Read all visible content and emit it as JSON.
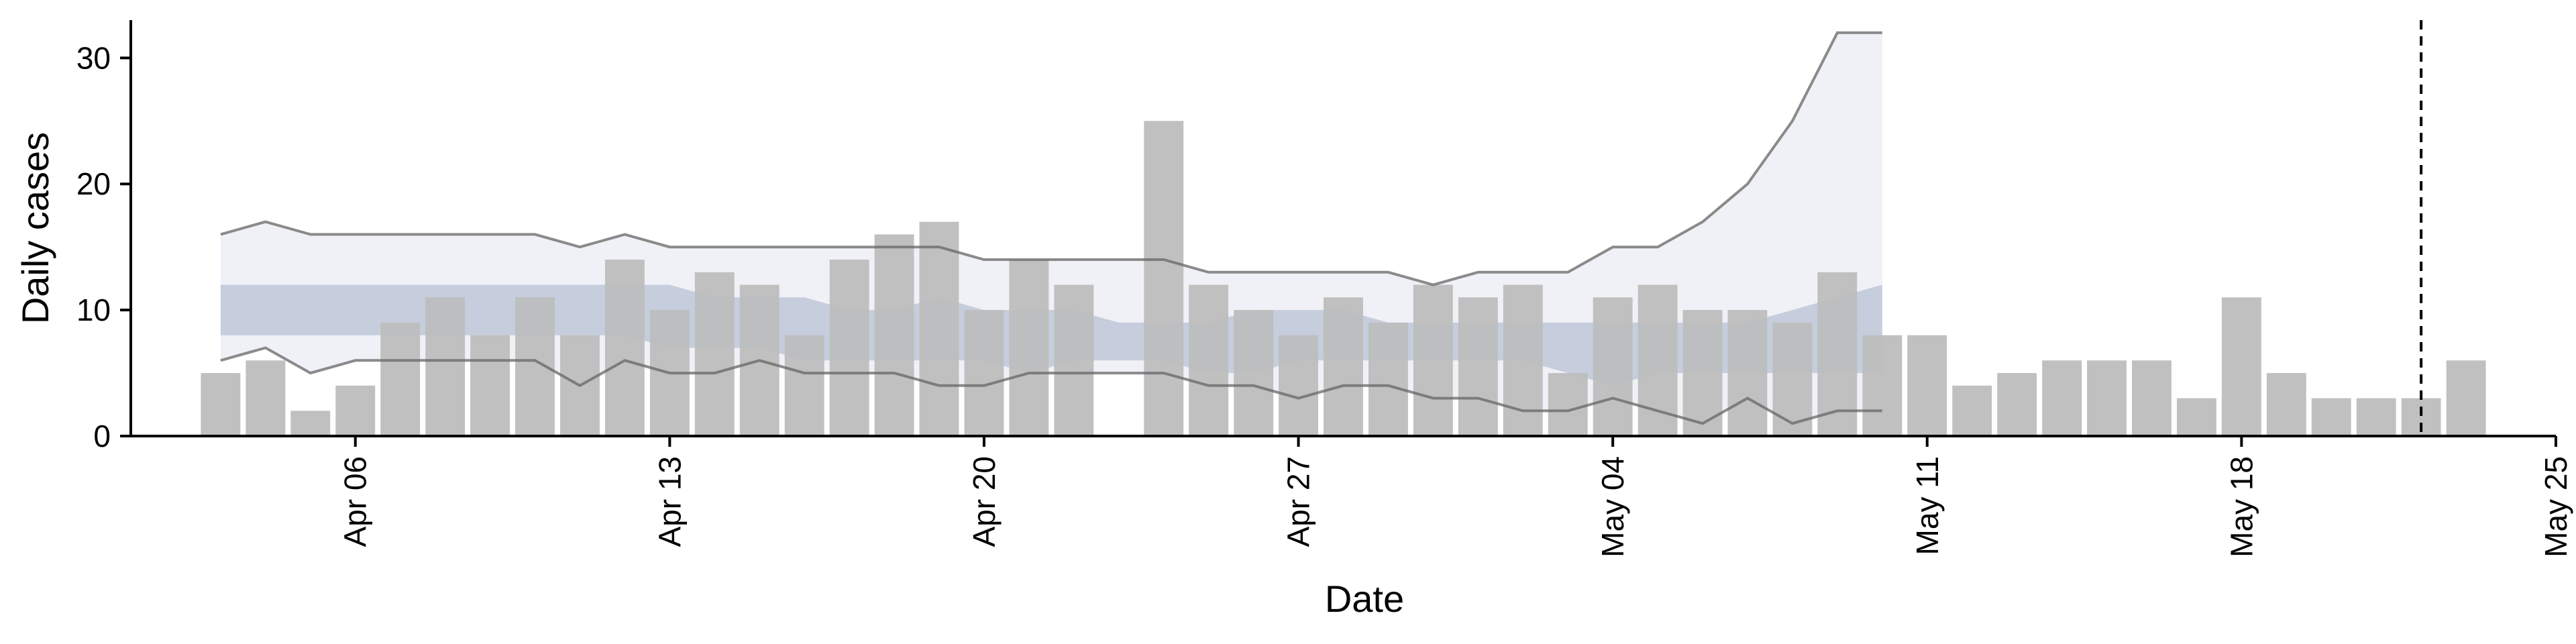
{
  "chart_data": {
    "type": "bar",
    "xlabel": "Date",
    "ylabel": "Daily cases",
    "title": "",
    "xlim": [
      "2020-04-01",
      "2020-05-25"
    ],
    "ylim": [
      0,
      33
    ],
    "x_ticks": [
      "Apr 06",
      "Apr 13",
      "Apr 20",
      "Apr 27",
      "May 04",
      "May 11",
      "May 18",
      "May 25"
    ],
    "x_tick_dates": [
      "2020-04-06",
      "2020-04-13",
      "2020-04-20",
      "2020-04-27",
      "2020-05-04",
      "2020-05-11",
      "2020-05-18",
      "2020-05-25"
    ],
    "y_ticks": [
      0,
      10,
      20,
      30
    ],
    "grid": false,
    "bar_color": "#bdbdbd",
    "band_outer_color": "#e6e8f0",
    "band_inner_color": "#aab5cc",
    "bound_line_color": "#666666",
    "reference_line": {
      "date": "2020-05-22",
      "style": "dashed",
      "color": "#000000"
    },
    "bars": {
      "dates": [
        "2020-04-03",
        "2020-04-04",
        "2020-04-05",
        "2020-04-06",
        "2020-04-07",
        "2020-04-08",
        "2020-04-09",
        "2020-04-10",
        "2020-04-11",
        "2020-04-12",
        "2020-04-13",
        "2020-04-14",
        "2020-04-15",
        "2020-04-16",
        "2020-04-17",
        "2020-04-18",
        "2020-04-19",
        "2020-04-20",
        "2020-04-21",
        "2020-04-22",
        "2020-04-24",
        "2020-04-25",
        "2020-04-26",
        "2020-04-27",
        "2020-04-28",
        "2020-04-29",
        "2020-04-30",
        "2020-05-01",
        "2020-05-02",
        "2020-05-03",
        "2020-05-04",
        "2020-05-05",
        "2020-05-06",
        "2020-05-07",
        "2020-05-08",
        "2020-05-09",
        "2020-05-10",
        "2020-05-11",
        "2020-05-12",
        "2020-05-13",
        "2020-05-14",
        "2020-05-15",
        "2020-05-16",
        "2020-05-17",
        "2020-05-18",
        "2020-05-19",
        "2020-05-20",
        "2020-05-21",
        "2020-05-22",
        "2020-05-23"
      ],
      "values": [
        5,
        6,
        2,
        4,
        9,
        11,
        8,
        11,
        8,
        14,
        10,
        13,
        12,
        8,
        14,
        16,
        17,
        10,
        14,
        12,
        25,
        12,
        10,
        8,
        11,
        9,
        12,
        11,
        12,
        5,
        11,
        12,
        10,
        10,
        9,
        13,
        8,
        8,
        4,
        5,
        6,
        6,
        6,
        3,
        11,
        5,
        3,
        3,
        3,
        6
      ]
    },
    "bands": {
      "dates": [
        "2020-04-03",
        "2020-04-04",
        "2020-04-05",
        "2020-04-06",
        "2020-04-07",
        "2020-04-08",
        "2020-04-09",
        "2020-04-10",
        "2020-04-11",
        "2020-04-12",
        "2020-04-13",
        "2020-04-14",
        "2020-04-15",
        "2020-04-16",
        "2020-04-17",
        "2020-04-18",
        "2020-04-19",
        "2020-04-20",
        "2020-04-21",
        "2020-04-22",
        "2020-04-23",
        "2020-04-24",
        "2020-04-25",
        "2020-04-26",
        "2020-04-27",
        "2020-04-28",
        "2020-04-29",
        "2020-04-30",
        "2020-05-01",
        "2020-05-02",
        "2020-05-03",
        "2020-05-04",
        "2020-05-05",
        "2020-05-06",
        "2020-05-07",
        "2020-05-08",
        "2020-05-09",
        "2020-05-10"
      ],
      "outer_upper": [
        16,
        17,
        16,
        16,
        16,
        16,
        16,
        16,
        15,
        16,
        15,
        15,
        15,
        15,
        15,
        15,
        15,
        14,
        14,
        14,
        14,
        14,
        13,
        13,
        13,
        13,
        13,
        12,
        13,
        13,
        13,
        15,
        15,
        17,
        20,
        25,
        32,
        32
      ],
      "outer_lower": [
        6,
        7,
        5,
        6,
        6,
        6,
        6,
        6,
        4,
        6,
        5,
        5,
        6,
        5,
        5,
        5,
        4,
        4,
        5,
        5,
        5,
        5,
        4,
        4,
        3,
        4,
        4,
        3,
        3,
        2,
        2,
        3,
        2,
        1,
        3,
        1,
        2,
        2
      ],
      "inner_upper": [
        12,
        12,
        12,
        12,
        12,
        12,
        12,
        12,
        12,
        12,
        12,
        11,
        11,
        11,
        10,
        10,
        11,
        10,
        10,
        10,
        9,
        9,
        9,
        10,
        10,
        10,
        9,
        9,
        9,
        9,
        9,
        9,
        9,
        9,
        9,
        10,
        11,
        12
      ],
      "inner_lower": [
        8,
        8,
        8,
        8,
        8,
        8,
        8,
        8,
        8,
        8,
        7,
        7,
        7,
        6,
        6,
        6,
        6,
        6,
        5,
        6,
        6,
        6,
        5,
        5,
        6,
        6,
        6,
        6,
        6,
        6,
        5,
        4,
        5,
        5,
        5,
        5,
        5,
        5
      ]
    }
  }
}
